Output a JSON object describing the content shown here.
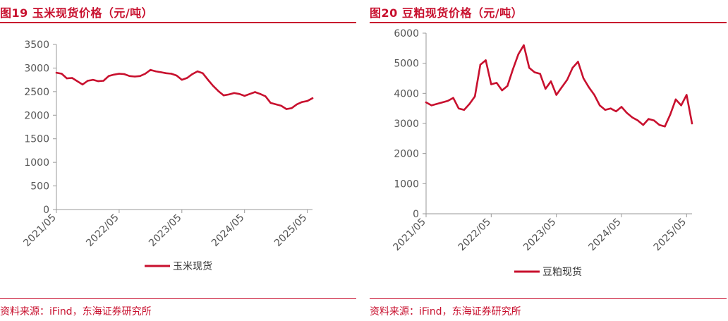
{
  "colors": {
    "accent": "#c8102e",
    "axis": "#999999",
    "text": "#555555"
  },
  "panels": [
    {
      "title": "图19  玉米现货价格（元/吨）",
      "source": "资料来源：iFind，东海证券研究所",
      "legend": "玉米现货"
    },
    {
      "title": "图20  豆粕现货价格（元/吨）",
      "source": "资料来源：iFind，东海证券研究所",
      "legend": "豆粕现货"
    }
  ],
  "chart_data": [
    {
      "type": "line",
      "title": "图19  玉米现货价格（元/吨）",
      "xlabel": "",
      "ylabel": "",
      "ylim": [
        0,
        3500
      ],
      "yticks": [
        0,
        500,
        1000,
        1500,
        2000,
        2500,
        3000,
        3500
      ],
      "xticks": [
        "2021/05",
        "2022/05",
        "2023/05",
        "2024/05",
        "2025/05"
      ],
      "xrange": [
        "2021/05",
        "2025/06"
      ],
      "legend_position": "bottom",
      "series": [
        {
          "name": "玉米现货",
          "color": "#c8102e",
          "x": [
            "2021/05",
            "2021/06",
            "2021/07",
            "2021/08",
            "2021/09",
            "2021/10",
            "2021/11",
            "2021/12",
            "2022/01",
            "2022/02",
            "2022/03",
            "2022/04",
            "2022/05",
            "2022/06",
            "2022/07",
            "2022/08",
            "2022/09",
            "2022/10",
            "2022/11",
            "2022/12",
            "2023/01",
            "2023/02",
            "2023/03",
            "2023/04",
            "2023/05",
            "2023/06",
            "2023/07",
            "2023/08",
            "2023/09",
            "2023/10",
            "2023/11",
            "2023/12",
            "2024/01",
            "2024/02",
            "2024/03",
            "2024/04",
            "2024/05",
            "2024/06",
            "2024/07",
            "2024/08",
            "2024/09",
            "2024/10",
            "2024/11",
            "2024/12",
            "2025/01",
            "2025/02",
            "2025/03",
            "2025/04",
            "2025/05",
            "2025/06"
          ],
          "values": [
            2900,
            2880,
            2780,
            2790,
            2720,
            2650,
            2730,
            2750,
            2720,
            2730,
            2830,
            2860,
            2880,
            2870,
            2830,
            2820,
            2830,
            2880,
            2960,
            2930,
            2910,
            2890,
            2880,
            2840,
            2750,
            2790,
            2870,
            2930,
            2890,
            2750,
            2620,
            2510,
            2420,
            2440,
            2470,
            2450,
            2410,
            2450,
            2490,
            2450,
            2400,
            2260,
            2230,
            2200,
            2130,
            2150,
            2230,
            2280,
            2300,
            2360
          ]
        }
      ]
    },
    {
      "type": "line",
      "title": "图20  豆粕现货价格（元/吨）",
      "xlabel": "",
      "ylabel": "",
      "ylim": [
        0,
        6000
      ],
      "yticks": [
        0,
        1000,
        2000,
        3000,
        4000,
        5000,
        6000
      ],
      "xticks": [
        "2021/05",
        "2022/05",
        "2023/05",
        "2024/05",
        "2025/05"
      ],
      "xrange": [
        "2021/05",
        "2025/06"
      ],
      "legend_position": "bottom",
      "series": [
        {
          "name": "豆粕现货",
          "color": "#c8102e",
          "x": [
            "2021/05",
            "2021/06",
            "2021/07",
            "2021/08",
            "2021/09",
            "2021/10",
            "2021/11",
            "2021/12",
            "2022/01",
            "2022/02",
            "2022/03",
            "2022/04",
            "2022/05",
            "2022/06",
            "2022/07",
            "2022/08",
            "2022/09",
            "2022/10",
            "2022/11",
            "2022/12",
            "2023/01",
            "2023/02",
            "2023/03",
            "2023/04",
            "2023/05",
            "2023/06",
            "2023/07",
            "2023/08",
            "2023/09",
            "2023/10",
            "2023/11",
            "2023/12",
            "2024/01",
            "2024/02",
            "2024/03",
            "2024/04",
            "2024/05",
            "2024/06",
            "2024/07",
            "2024/08",
            "2024/09",
            "2024/10",
            "2024/11",
            "2024/12",
            "2025/01",
            "2025/02",
            "2025/03",
            "2025/04",
            "2025/05",
            "2025/06"
          ],
          "values": [
            3700,
            3600,
            3650,
            3700,
            3750,
            3850,
            3500,
            3450,
            3650,
            3900,
            4950,
            5100,
            4300,
            4350,
            4100,
            4250,
            4800,
            5300,
            5600,
            4850,
            4700,
            4650,
            4150,
            4400,
            3950,
            4200,
            4450,
            4850,
            5050,
            4500,
            4200,
            3950,
            3600,
            3450,
            3500,
            3400,
            3550,
            3350,
            3200,
            3100,
            2950,
            3150,
            3100,
            2950,
            2900,
            3300,
            3800,
            3600,
            3950,
            3000
          ]
        }
      ]
    }
  ]
}
